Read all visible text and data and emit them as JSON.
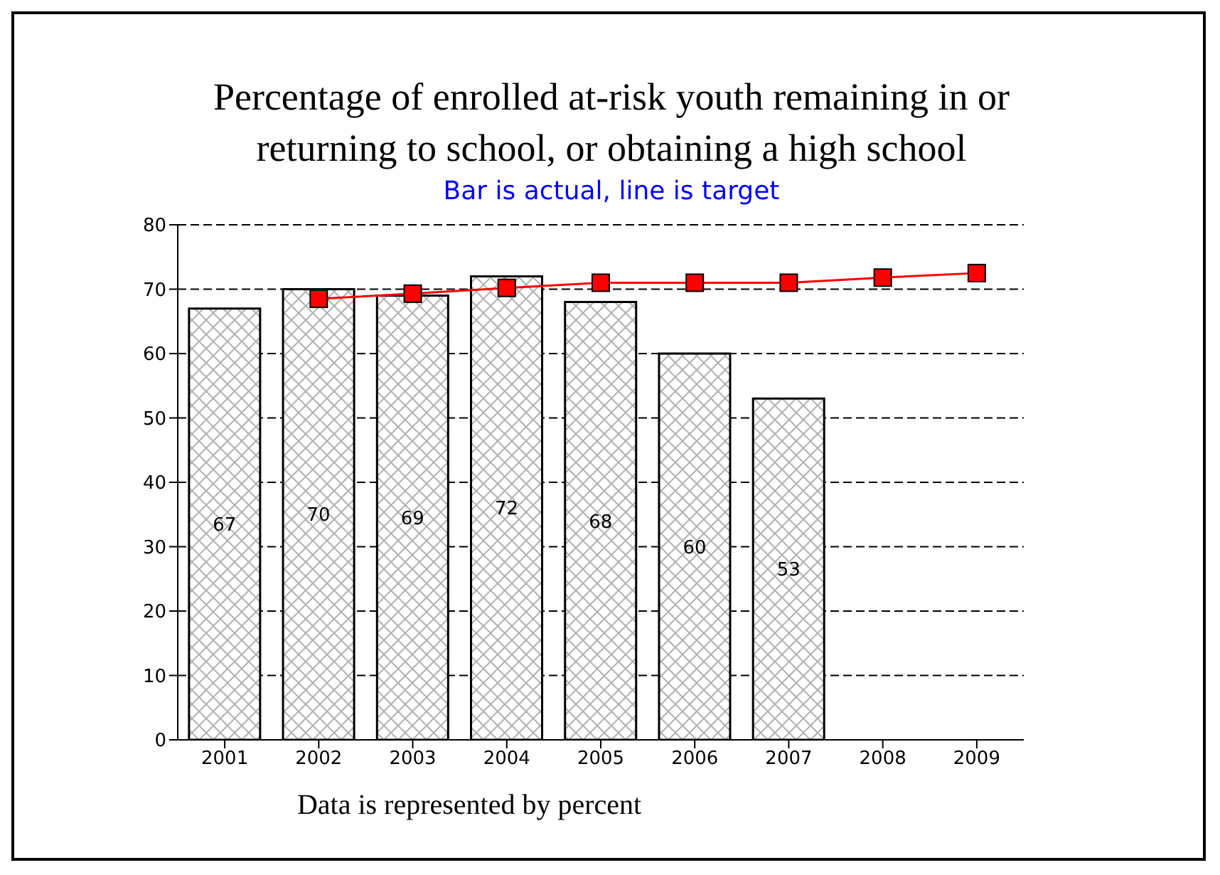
{
  "chart_data": {
    "type": "bar",
    "title": "Percentage of enrolled at-risk youth remaining in or returning to school, or obtaining a high school",
    "subtitle": "Bar is actual, line is target",
    "categories": [
      "2001",
      "2002",
      "2003",
      "2004",
      "2005",
      "2006",
      "2007",
      "2008",
      "2009"
    ],
    "series": [
      {
        "color": "#000000",
        "values": [
          67,
          70,
          69,
          72,
          68,
          60,
          53,
          null,
          null
        ],
        "value_labels": [
          "67",
          "70",
          "69",
          "72",
          "68",
          "60",
          "53",
          null,
          null
        ]
      },
      {
        "type": "line",
        "color": "#ff0000",
        "values": [
          null,
          68.5,
          69.3,
          70.2,
          71,
          71,
          71,
          71.8,
          72.5
        ],
        "marker": "square"
      }
    ],
    "ylim": [
      0,
      80
    ],
    "yticks": [
      0,
      10,
      20,
      30,
      40,
      50,
      60,
      70,
      80
    ],
    "grid": "y",
    "annotations": [
      "Data is represented by percent"
    ]
  }
}
